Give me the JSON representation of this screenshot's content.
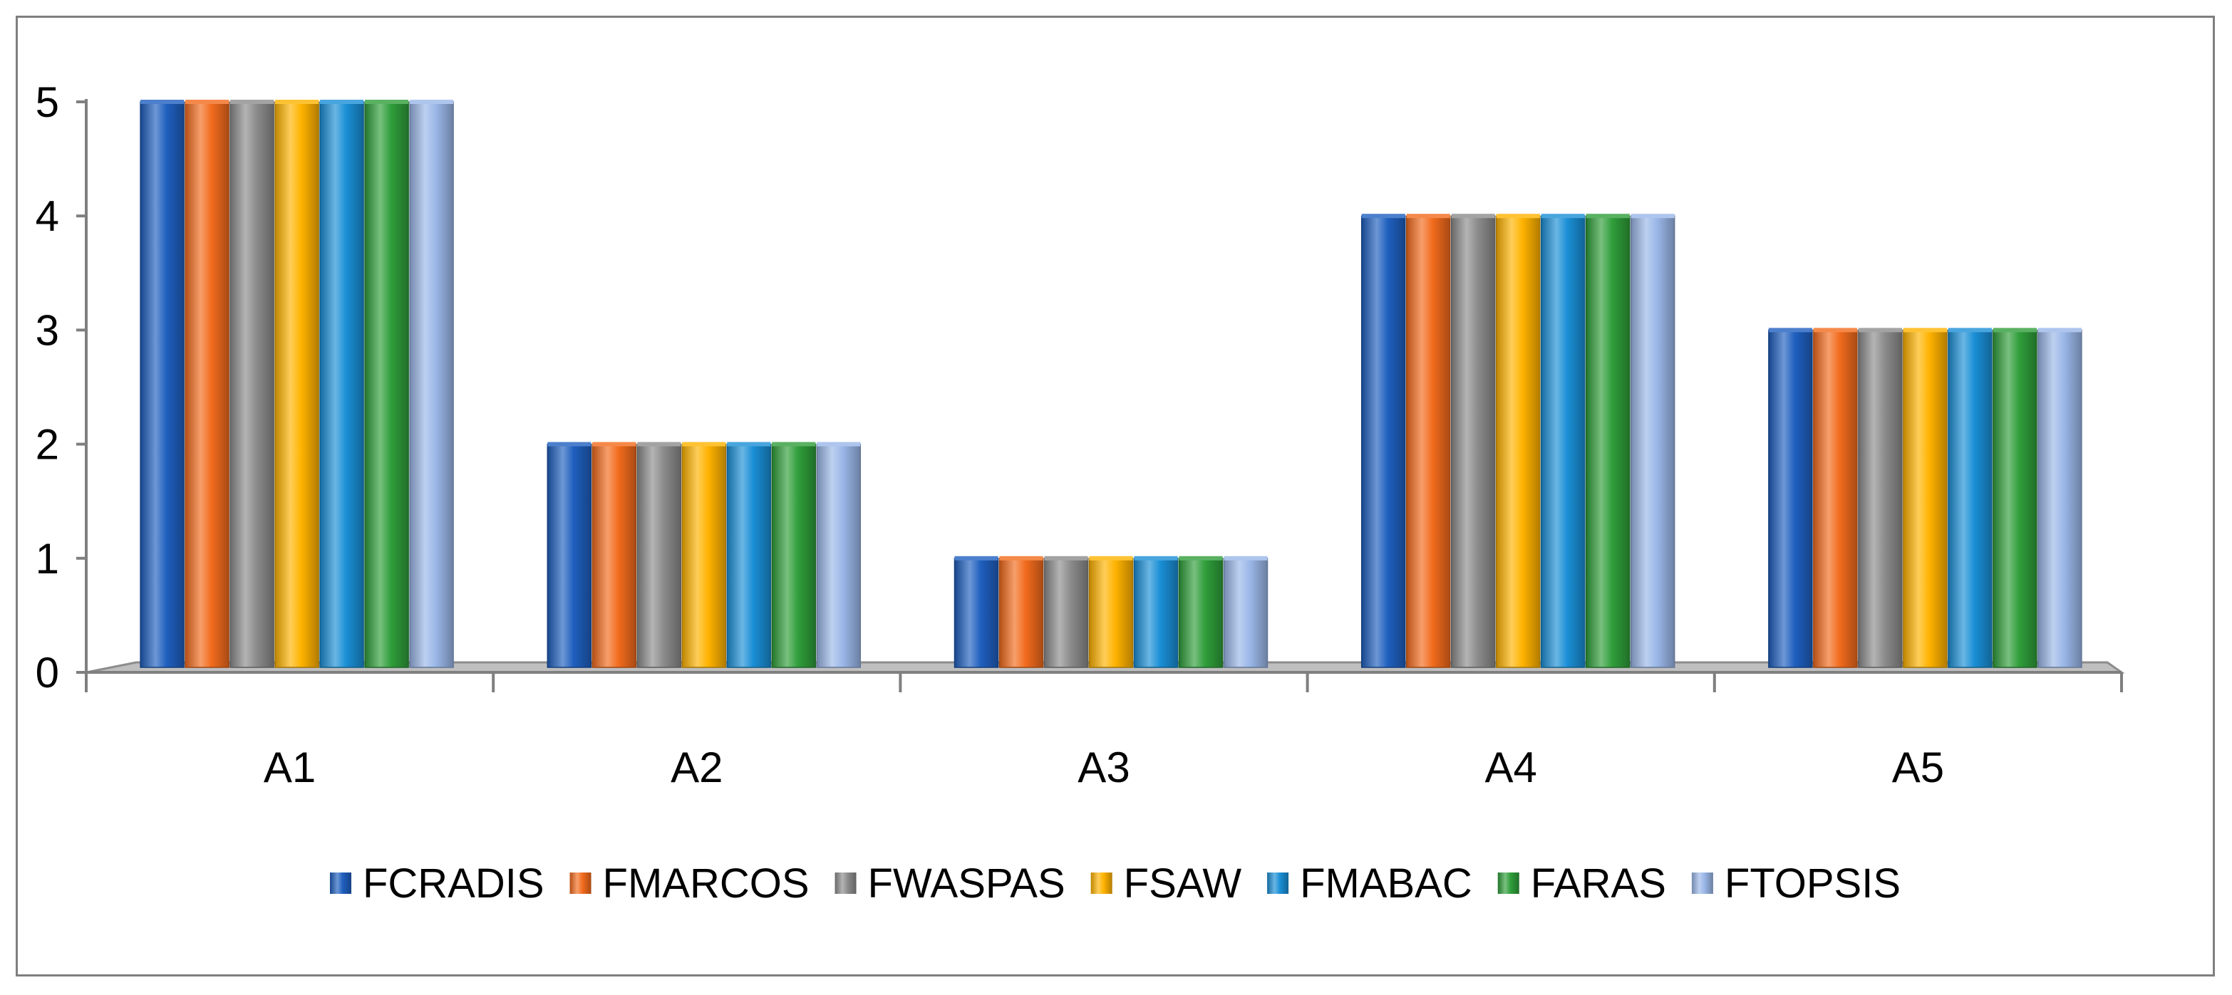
{
  "chart_data": {
    "type": "bar",
    "title": "",
    "xlabel": "",
    "ylabel": "",
    "ylim": [
      0,
      5
    ],
    "yticks": [
      0,
      1,
      2,
      3,
      4,
      5
    ],
    "grid": false,
    "legend_position": "bottom",
    "categories": [
      "A1",
      "A2",
      "A3",
      "A4",
      "A5"
    ],
    "series": [
      {
        "name": "FCRADIS",
        "color": "#1f5fbf",
        "values": [
          5,
          2,
          1,
          4,
          3
        ]
      },
      {
        "name": "FMARCOS",
        "color": "#f26b1d",
        "values": [
          5,
          2,
          1,
          4,
          3
        ]
      },
      {
        "name": "FWASPAS",
        "color": "#8c8c8c",
        "values": [
          5,
          2,
          1,
          4,
          3
        ]
      },
      {
        "name": "FSAW",
        "color": "#ffb300",
        "values": [
          5,
          2,
          1,
          4,
          3
        ]
      },
      {
        "name": "FMABAC",
        "color": "#1a8fd6",
        "values": [
          5,
          2,
          1,
          4,
          3
        ]
      },
      {
        "name": "FARAS",
        "color": "#2f9e3a",
        "values": [
          5,
          2,
          1,
          4,
          3
        ]
      },
      {
        "name": "FTOPSIS",
        "color": "#9ab7e8",
        "values": [
          5,
          2,
          1,
          4,
          3
        ]
      }
    ]
  }
}
